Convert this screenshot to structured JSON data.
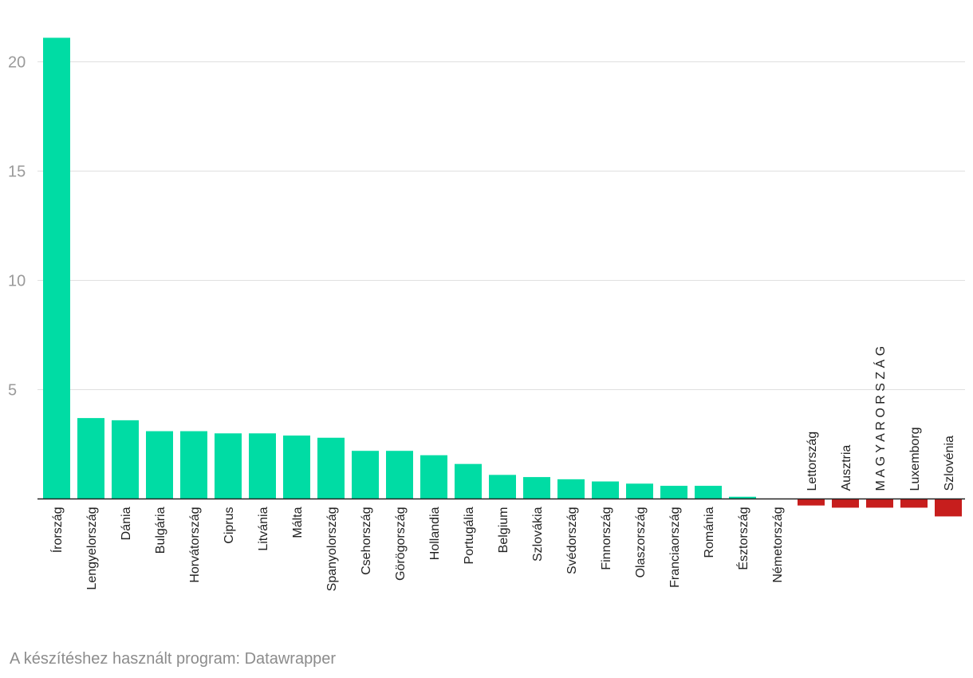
{
  "chart_data": {
    "type": "bar",
    "categories": [
      "Írország",
      "Lengyelország",
      "Dánia",
      "Bulgária",
      "Horvátország",
      "Ciprus",
      "Litvánia",
      "Málta",
      "Spanyolország",
      "Csehország",
      "Görögország",
      "Hollandia",
      "Portugália",
      "Belgium",
      "Szlovákia",
      "Svédország",
      "Finnország",
      "Olaszország",
      "Franciaország",
      "Románia",
      "Észtország",
      "Németország",
      "Lettország",
      "Ausztria",
      "M A G Y A R O R S Z Á G",
      "Luxemborg",
      "Szlovénia"
    ],
    "values": [
      21.1,
      3.7,
      3.6,
      3.1,
      3.1,
      3.0,
      3.0,
      2.9,
      2.8,
      2.2,
      2.2,
      2.0,
      1.6,
      1.1,
      1.0,
      0.9,
      0.8,
      0.7,
      0.6,
      0.6,
      0.1,
      0.0,
      -0.3,
      -0.4,
      -0.4,
      -0.4,
      -0.8
    ],
    "yticks": [
      "5",
      "10",
      "15",
      "20"
    ],
    "ylim": [
      -1,
      22
    ],
    "grid": true,
    "colors": {
      "positive": "#00dca4",
      "negative": "#c71e1d",
      "gridline": "#e0e0e0",
      "axis": "#222222"
    }
  },
  "footer": {
    "credit": "A készítéshez használt program: Datawrapper"
  }
}
